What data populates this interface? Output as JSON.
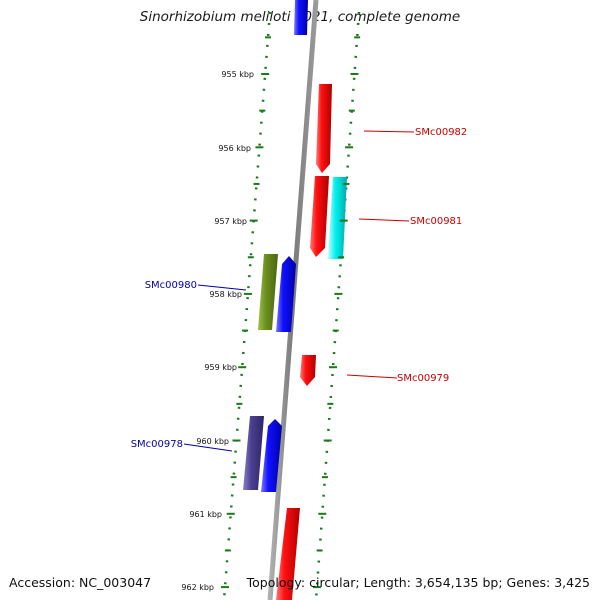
{
  "title": "Sinorhizobium meliloti 1021, complete genome",
  "footer": {
    "accession": "Accession: NC_003047",
    "stats": "Topology: circular; Length: 3,654,135 bp; Genes: 3,425"
  },
  "colors": {
    "forward_gene": "#ee0000",
    "reverse_gene": "#0000ee",
    "cyan_gene": "#00e0e0",
    "olive_gene": "#6b8f1e",
    "violet_gene": "#4a3f8f",
    "backbone": "#888888",
    "ticks": "#1a7a1a",
    "forward_label": "#cc0000",
    "reverse_label": "#0000aa"
  },
  "scale_ticks": [
    {
      "kbp": 955,
      "label": "955 kbp"
    },
    {
      "kbp": 956,
      "label": "956 kbp"
    },
    {
      "kbp": 957,
      "label": "957 kbp"
    },
    {
      "kbp": 958,
      "label": "958 kbp"
    },
    {
      "kbp": 959,
      "label": "959 kbp"
    },
    {
      "kbp": 960,
      "label": "960 kbp"
    },
    {
      "kbp": 961,
      "label": "961 kbp"
    },
    {
      "kbp": 962,
      "label": "962 kbp"
    }
  ],
  "gene_labels": [
    {
      "text": "SMc00982",
      "strand": "forward"
    },
    {
      "text": "SMc00981",
      "strand": "forward"
    },
    {
      "text": "SMc00980",
      "strand": "reverse"
    },
    {
      "text": "SMc00979",
      "strand": "forward"
    },
    {
      "text": "SMc00978",
      "strand": "reverse"
    }
  ]
}
